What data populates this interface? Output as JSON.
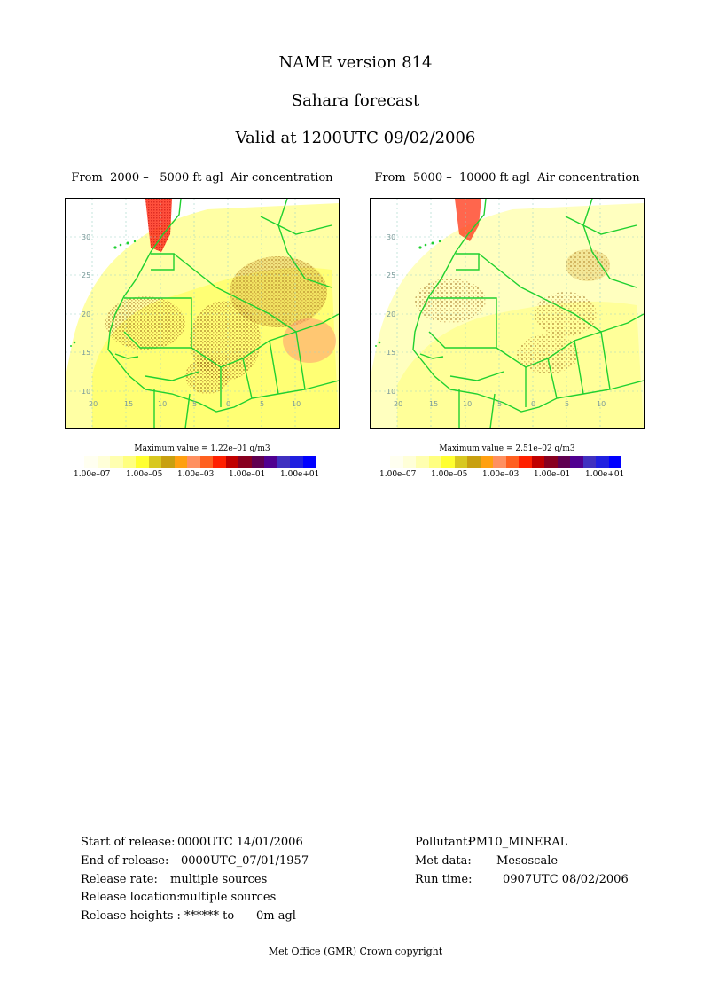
{
  "header": {
    "title": "NAME version 814",
    "subtitle": "Sahara forecast",
    "valid": "Valid at 1200UTC 09/02/2006"
  },
  "panels": [
    {
      "title": "From  2000 –   5000 ft agl  Air concentration",
      "max_value": "Maximum value = 1.22e–01 g/m3",
      "lat_labels": [
        "30",
        "25",
        "20",
        "15",
        "10"
      ],
      "lon_labels": [
        "20",
        "15",
        "10",
        "5",
        "0",
        "5",
        "10"
      ]
    },
    {
      "title": "From  5000 –  10000 ft agl  Air concentration",
      "max_value": "Maximum value = 2.51e–02 g/m3",
      "lat_labels": [
        "30",
        "25",
        "20",
        "15",
        "10"
      ],
      "lon_labels": [
        "20",
        "15",
        "10",
        "5",
        "0",
        "5",
        "10"
      ]
    }
  ],
  "color_scale": {
    "colors": [
      "#fffff0",
      "#ffffd8",
      "#ffffb0",
      "#ffff80",
      "#ffff30",
      "#d8c820",
      "#c8a010",
      "#ffa010",
      "#ff9060",
      "#ff6020",
      "#ff2000",
      "#c00000",
      "#880020",
      "#600050",
      "#500090",
      "#4030c0",
      "#2020e0",
      "#0000ff"
    ],
    "tick_labels": [
      "1.00e–07",
      "1.00e–05",
      "1.00e–03",
      "1.00e–01",
      "1.00e+01"
    ]
  },
  "info_left": [
    {
      "label": "Start of release:",
      "value": "0000UTC 14/01/2006"
    },
    {
      "label": "End of release:",
      "value": "0000UTC_07/01/1957"
    },
    {
      "label": "Release rate:",
      "value": "multiple sources"
    },
    {
      "label": "Release location:",
      "value": "multiple sources"
    },
    {
      "label": "Release heights :",
      "value": "****** to      0m agl"
    }
  ],
  "info_right": [
    {
      "label": "Pollutant:",
      "value": "PM10_MINERAL"
    },
    {
      "label": "Met data:",
      "value": "Mesoscale"
    },
    {
      "label": "Run time:",
      "value": "0907UTC 08/02/2006"
    }
  ],
  "footer": "Met Office (GMR)  Crown copyright"
}
